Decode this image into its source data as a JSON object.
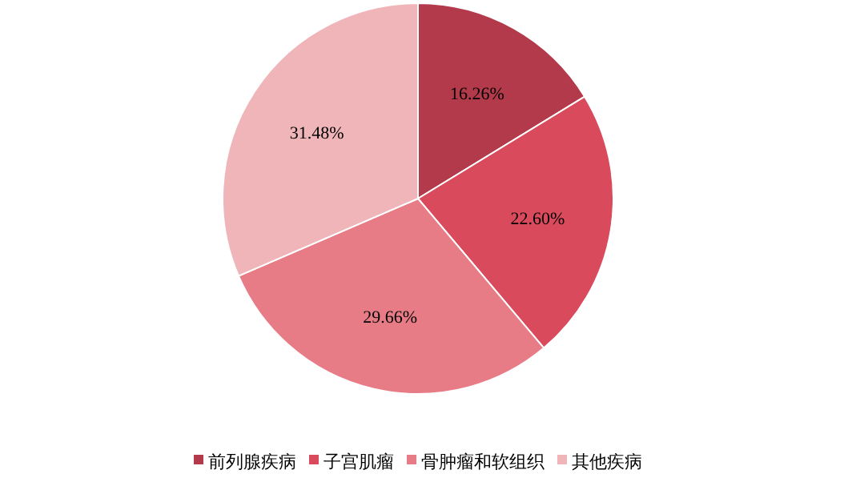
{
  "chart_data": {
    "type": "pie",
    "categories": [
      "前列腺疾病",
      "子宫肌瘤",
      "骨肿瘤和软组织",
      "其他疾病"
    ],
    "values": [
      16.26,
      22.6,
      29.66,
      31.48
    ],
    "colors": [
      "#b23a4a",
      "#d94b5c",
      "#e87c86",
      "#f0b5b9"
    ],
    "value_labels": [
      "16.26%",
      "22.60%",
      "29.66%",
      "31.48%"
    ],
    "legend": "bottom"
  }
}
